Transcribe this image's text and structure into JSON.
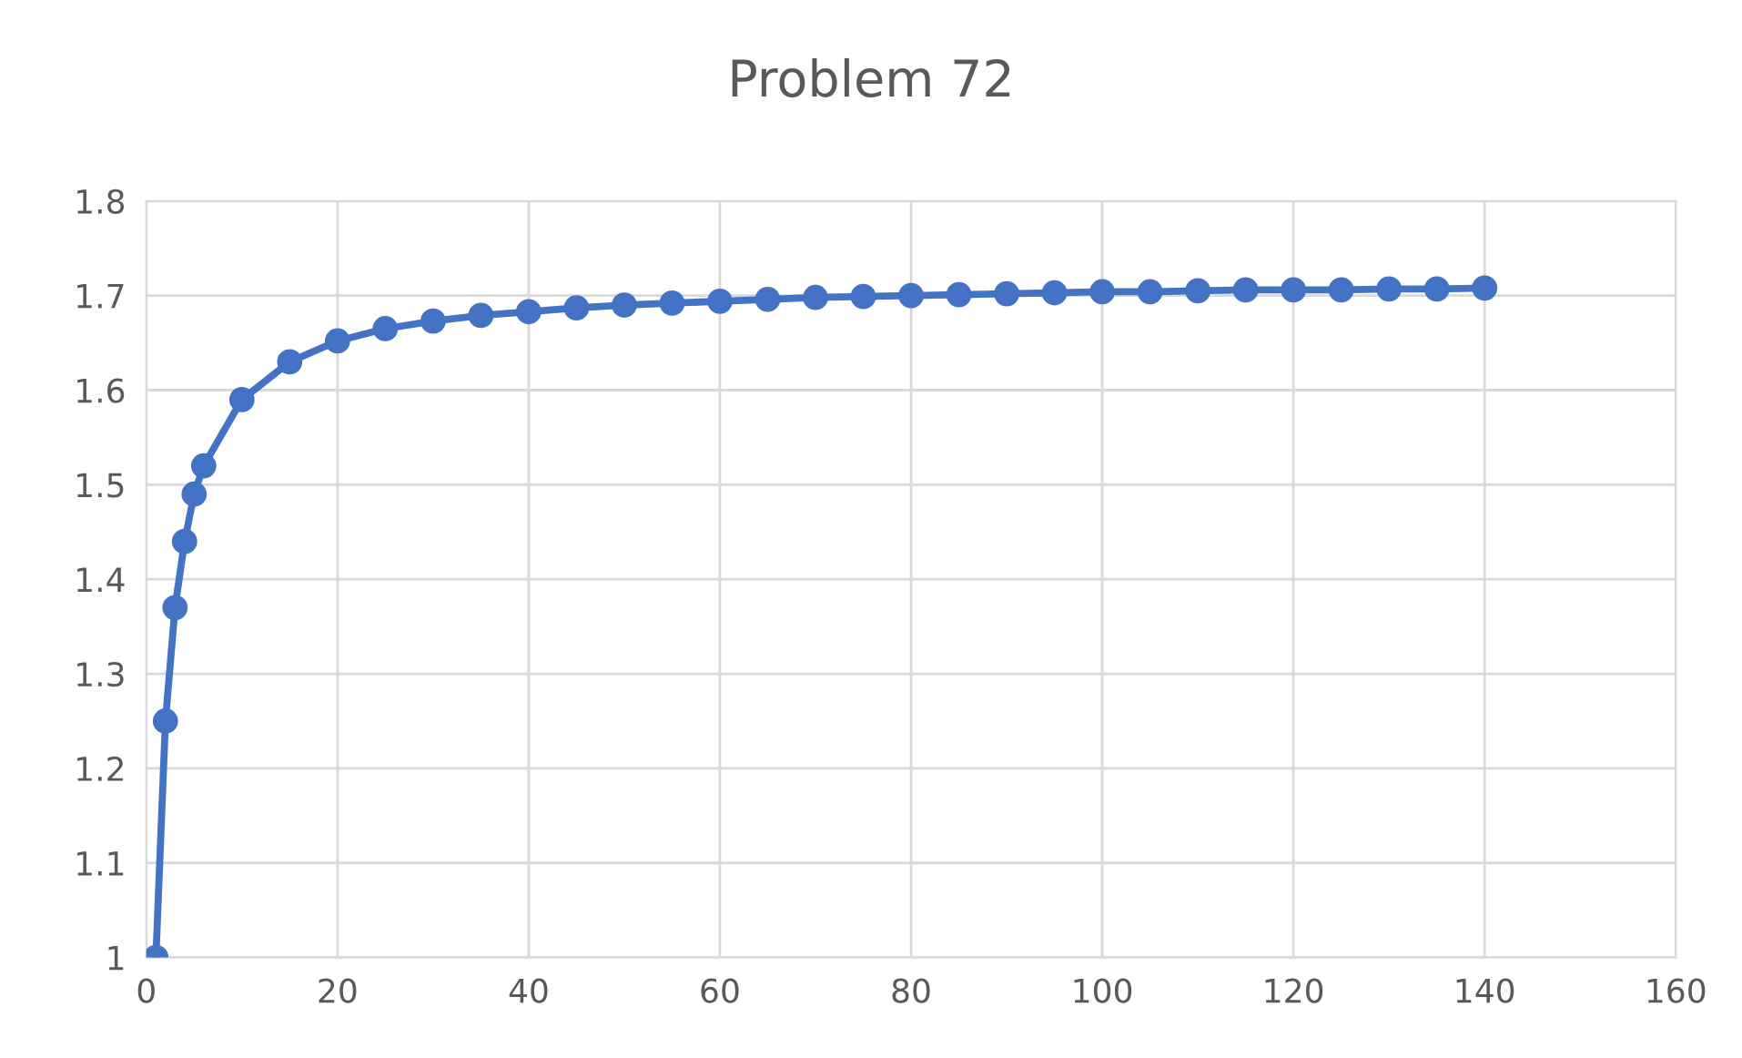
{
  "chart_data": {
    "type": "line",
    "title": "Problem 72",
    "x": [
      1,
      2,
      3,
      4,
      5,
      6,
      10,
      15,
      20,
      25,
      30,
      35,
      40,
      45,
      50,
      55,
      60,
      65,
      70,
      75,
      80,
      85,
      90,
      95,
      100,
      105,
      110,
      115,
      120,
      125,
      130,
      135,
      140
    ],
    "series": [
      {
        "color": "#4472c4",
        "values": [
          1.0,
          1.25,
          1.37,
          1.44,
          1.49,
          1.52,
          1.59,
          1.63,
          1.652,
          1.665,
          1.673,
          1.679,
          1.683,
          1.687,
          1.69,
          1.692,
          1.694,
          1.696,
          1.698,
          1.699,
          1.7,
          1.701,
          1.702,
          1.703,
          1.704,
          1.704,
          1.705,
          1.706,
          1.706,
          1.706,
          1.707,
          1.707,
          1.708
        ]
      }
    ],
    "xlim": [
      0,
      160
    ],
    "xticks": [
      0,
      20,
      40,
      60,
      80,
      100,
      120,
      140,
      160
    ],
    "ylim": [
      1,
      1.8
    ],
    "yticks": [
      {
        "value": 1,
        "label": "1"
      },
      1.1,
      1.2,
      1.3,
      1.4,
      1.5,
      1.6,
      1.7,
      1.8
    ],
    "grid": true,
    "marker": "circle",
    "line_style": "solid"
  }
}
